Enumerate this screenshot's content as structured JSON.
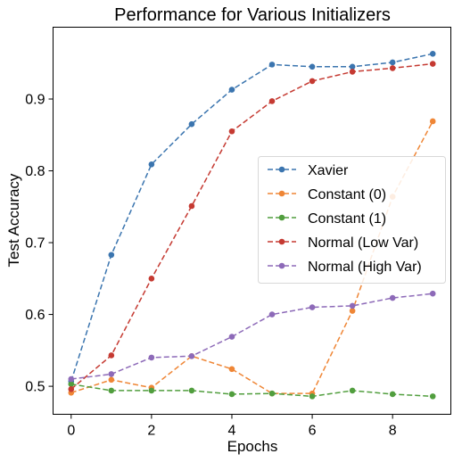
{
  "chart_data": {
    "type": "line",
    "title": "Performance for Various Initializers",
    "xlabel": "Epochs",
    "ylabel": "Test Accuracy",
    "xlim": [
      -0.45,
      9.45
    ],
    "ylim": [
      0.461,
      1.0
    ],
    "xticks": [
      "0",
      "2",
      "4",
      "6",
      "8"
    ],
    "yticks": [
      "0.5",
      "0.6",
      "0.7",
      "0.8",
      "0.9"
    ],
    "grid": false,
    "legend_position": "center-right",
    "x": [
      0,
      1,
      2,
      3,
      4,
      5,
      6,
      7,
      8,
      9
    ],
    "series": [
      {
        "name": "Xavier",
        "color": "#3b75af",
        "values": [
          0.507,
          0.683,
          0.809,
          0.865,
          0.913,
          0.948,
          0.945,
          0.945,
          0.951,
          0.963
        ]
      },
      {
        "name": "Constant (0)",
        "color": "#ef8636",
        "values": [
          0.491,
          0.509,
          0.498,
          0.542,
          0.524,
          0.49,
          0.49,
          0.605,
          0.764,
          0.869
        ]
      },
      {
        "name": "Constant (1)",
        "color": "#519e3e",
        "values": [
          0.503,
          0.494,
          0.494,
          0.494,
          0.489,
          0.49,
          0.486,
          0.494,
          0.489,
          0.486
        ]
      },
      {
        "name": "Normal (Low Var)",
        "color": "#c53a32",
        "values": [
          0.496,
          0.543,
          0.65,
          0.751,
          0.855,
          0.897,
          0.925,
          0.938,
          0.943,
          0.949
        ]
      },
      {
        "name": "Normal (High Var)",
        "color": "#8d6ab8",
        "values": [
          0.51,
          0.517,
          0.54,
          0.542,
          0.569,
          0.6,
          0.61,
          0.612,
          0.623,
          0.629
        ]
      }
    ]
  }
}
